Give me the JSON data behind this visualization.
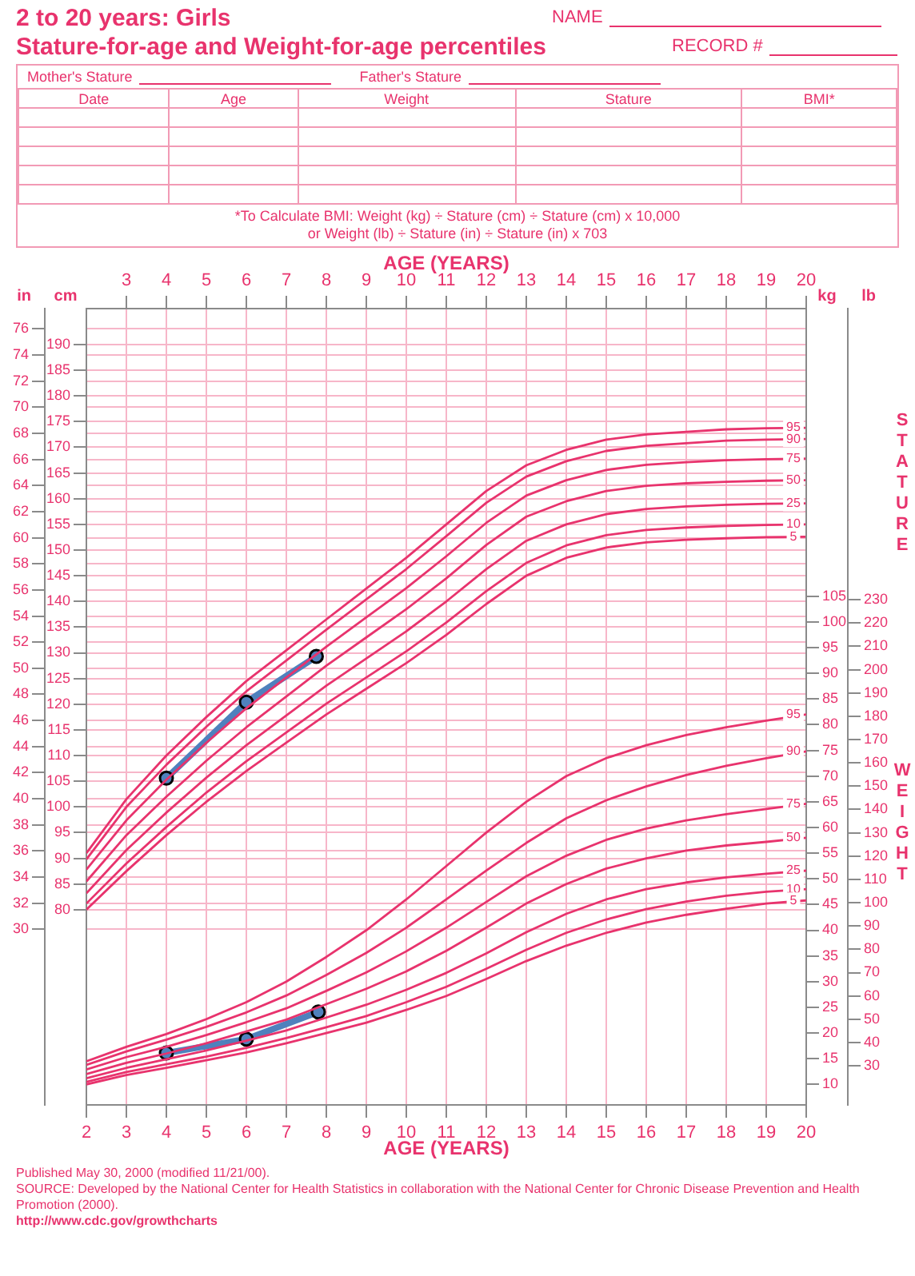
{
  "chart_data": [
    {
      "type": "line",
      "title": "2 to 20 years: Girls",
      "subtitle": "Stature-for-age and Weight-for-age percentiles",
      "xlabel": "AGE (YEARS)",
      "ylabel": "cm",
      "y2label": "in",
      "x": [
        2,
        3,
        4,
        5,
        6,
        7,
        8,
        9,
        10,
        11,
        12,
        13,
        14,
        15,
        16,
        17,
        18,
        19,
        20
      ],
      "xlim": [
        2,
        20
      ],
      "xticks": [
        3,
        4,
        5,
        6,
        7,
        8,
        9,
        10,
        11,
        12,
        13,
        14,
        15,
        16,
        17,
        18,
        19,
        20
      ],
      "ylim": [
        42,
        197
      ],
      "yticks": [
        80,
        85,
        90,
        95,
        100,
        105,
        110,
        115,
        120,
        125,
        130,
        135,
        140,
        145,
        150,
        155,
        160,
        165,
        170,
        175,
        180,
        185,
        190
      ],
      "y2lim": [
        16.54,
        77.56
      ],
      "y2ticks": [
        30,
        32,
        34,
        36,
        38,
        40,
        42,
        44,
        46,
        48,
        50,
        52,
        54,
        56,
        58,
        60,
        62,
        64,
        66,
        68,
        70,
        72,
        74,
        76
      ],
      "grid": true,
      "marker": "none",
      "line_style": "solid",
      "series": [
        {
          "name": "95",
          "color": "#e8336d",
          "values": [
            91.0,
            101.5,
            110.0,
            117.5,
            124.5,
            130.5,
            136.5,
            142.5,
            148.5,
            155.0,
            161.5,
            166.5,
            169.5,
            171.5,
            172.5,
            173.0,
            173.5,
            173.7,
            173.8
          ]
        },
        {
          "name": "90",
          "color": "#e8336d",
          "values": [
            89.8,
            100.0,
            108.2,
            115.6,
            122.5,
            128.5,
            134.5,
            140.4,
            146.3,
            152.7,
            159.2,
            164.3,
            167.3,
            169.3,
            170.3,
            170.8,
            171.3,
            171.5,
            171.6
          ]
        },
        {
          "name": "75",
          "color": "#e8336d",
          "values": [
            87.8,
            97.4,
            105.3,
            112.5,
            119.2,
            125.2,
            131.2,
            136.9,
            142.6,
            148.8,
            155.3,
            160.6,
            163.6,
            165.6,
            166.6,
            167.1,
            167.5,
            167.7,
            167.8
          ]
        },
        {
          "name": "50",
          "color": "#e8336d",
          "values": [
            85.5,
            94.5,
            102.0,
            109.0,
            115.5,
            121.5,
            127.5,
            133.0,
            138.5,
            144.5,
            151.0,
            156.5,
            159.5,
            161.5,
            162.5,
            163.0,
            163.3,
            163.5,
            163.6
          ]
        },
        {
          "name": "25",
          "color": "#e8336d",
          "values": [
            83.2,
            91.6,
            98.9,
            105.7,
            112.0,
            117.8,
            123.6,
            128.9,
            134.2,
            140.0,
            146.3,
            151.8,
            155.0,
            157.0,
            158.0,
            158.5,
            158.8,
            159.0,
            159.1
          ]
        },
        {
          "name": "10",
          "color": "#e8336d",
          "values": [
            81.2,
            89.0,
            96.1,
            102.8,
            108.9,
            114.5,
            120.1,
            125.2,
            130.3,
            135.9,
            142.0,
            147.5,
            150.9,
            152.9,
            153.9,
            154.4,
            154.7,
            154.9,
            155.0
          ]
        },
        {
          "name": "5",
          "color": "#e8336d",
          "values": [
            80.0,
            87.5,
            94.5,
            101.0,
            107.0,
            112.5,
            118.0,
            123.0,
            128.0,
            133.5,
            139.5,
            145.0,
            148.5,
            150.5,
            151.5,
            152.0,
            152.3,
            152.5,
            152.6
          ]
        },
        {
          "color": "#4f81bd",
          "marker": "circle",
          "x": [
            4,
            6,
            7.75
          ],
          "values": [
            105.6,
            120.4,
            129.3
          ]
        }
      ],
      "annotations": [
        "NAME",
        "RECORD #",
        "Mother's Stature",
        "Father's Stature",
        "Date",
        "Age",
        "Weight",
        "Stature",
        "BMI*",
        "*To Calculate BMI: Weight (kg) ÷ Stature (cm) ÷ Stature (cm) x 10,000",
        "or Weight (lb) ÷ Stature (in) ÷ Stature (in) x 703",
        "STATURE",
        "Published May 30, 2000 (modified 11/21/00).",
        "SOURCE: Developed by the National Center for Health Statistics in collaboration with the National Center for Chronic Disease Prevention and Health Promotion (2000).",
        "http://www.cdc.gov/growthcharts"
      ]
    },
    {
      "type": "line",
      "xlabel": "AGE (YEARS)",
      "ylabel": "kg",
      "y2label": "lb",
      "x": [
        2,
        3,
        4,
        5,
        6,
        7,
        8,
        9,
        10,
        11,
        12,
        13,
        14,
        15,
        16,
        17,
        18,
        19,
        20
      ],
      "xlim": [
        2,
        20
      ],
      "xticks": [
        2,
        3,
        4,
        5,
        6,
        7,
        8,
        9,
        10,
        11,
        12,
        13,
        14,
        15,
        16,
        17,
        18,
        19,
        20
      ],
      "ylim": [
        6,
        161
      ],
      "yticks": [
        10,
        15,
        20,
        25,
        30,
        35,
        40,
        45,
        50,
        55,
        60,
        65,
        70,
        75,
        80,
        85,
        90,
        95,
        100,
        105
      ],
      "y2lim": [
        13.23,
        354.94
      ],
      "y2ticks": [
        30,
        40,
        50,
        60,
        70,
        80,
        90,
        100,
        110,
        120,
        130,
        140,
        150,
        160,
        170,
        180,
        190,
        200,
        210,
        220,
        230
      ],
      "marker": "none",
      "line_style": "solid",
      "series": [
        {
          "name": "95",
          "color": "#e8336d",
          "values": [
            14.5,
            17.3,
            19.8,
            22.7,
            26.0,
            30.0,
            34.8,
            40.0,
            46.0,
            52.5,
            59.0,
            65.0,
            70.0,
            73.5,
            76.0,
            78.0,
            79.5,
            80.8,
            82.0
          ]
        },
        {
          "name": "90",
          "color": "#e8336d",
          "values": [
            13.8,
            16.4,
            18.7,
            21.2,
            24.0,
            27.3,
            31.3,
            35.6,
            40.5,
            46.0,
            51.6,
            57.0,
            61.8,
            65.3,
            68.0,
            70.2,
            72.0,
            73.5,
            74.8
          ]
        },
        {
          "name": "75",
          "color": "#e8336d",
          "values": [
            12.9,
            15.3,
            17.3,
            19.6,
            22.1,
            24.8,
            28.2,
            31.8,
            35.9,
            40.5,
            45.5,
            50.5,
            54.5,
            57.6,
            59.8,
            61.4,
            62.6,
            63.6,
            64.6
          ]
        },
        {
          "name": "50",
          "color": "#e8336d",
          "values": [
            12.0,
            14.2,
            16.0,
            18.0,
            20.3,
            22.6,
            25.6,
            28.6,
            32.0,
            36.0,
            40.5,
            45.2,
            49.0,
            52.0,
            54.0,
            55.5,
            56.5,
            57.2,
            58.0
          ]
        },
        {
          "name": "25",
          "color": "#e8336d",
          "values": [
            11.2,
            13.2,
            14.9,
            16.6,
            18.5,
            20.5,
            23.0,
            25.5,
            28.4,
            31.7,
            35.5,
            39.6,
            43.2,
            46.0,
            48.0,
            49.3,
            50.3,
            51.0,
            51.6
          ]
        },
        {
          "name": "10",
          "color": "#e8336d",
          "values": [
            10.5,
            12.4,
            13.9,
            15.4,
            17.1,
            19.0,
            21.1,
            23.3,
            26.0,
            29.0,
            32.5,
            36.2,
            39.5,
            42.1,
            44.1,
            45.6,
            46.7,
            47.5,
            48.0
          ]
        },
        {
          "name": "5",
          "color": "#e8336d",
          "values": [
            10.0,
            11.8,
            13.2,
            14.7,
            16.2,
            18.0,
            20.0,
            22.0,
            24.5,
            27.2,
            30.5,
            34.0,
            37.0,
            39.5,
            41.5,
            43.0,
            44.2,
            45.2,
            45.8
          ]
        },
        {
          "color": "#4f81bd",
          "marker": "circle",
          "x": [
            4,
            6,
            7.8
          ],
          "values": [
            16.1,
            18.8,
            24.1
          ]
        }
      ],
      "annotations": [
        "WEIGHT"
      ]
    }
  ]
}
